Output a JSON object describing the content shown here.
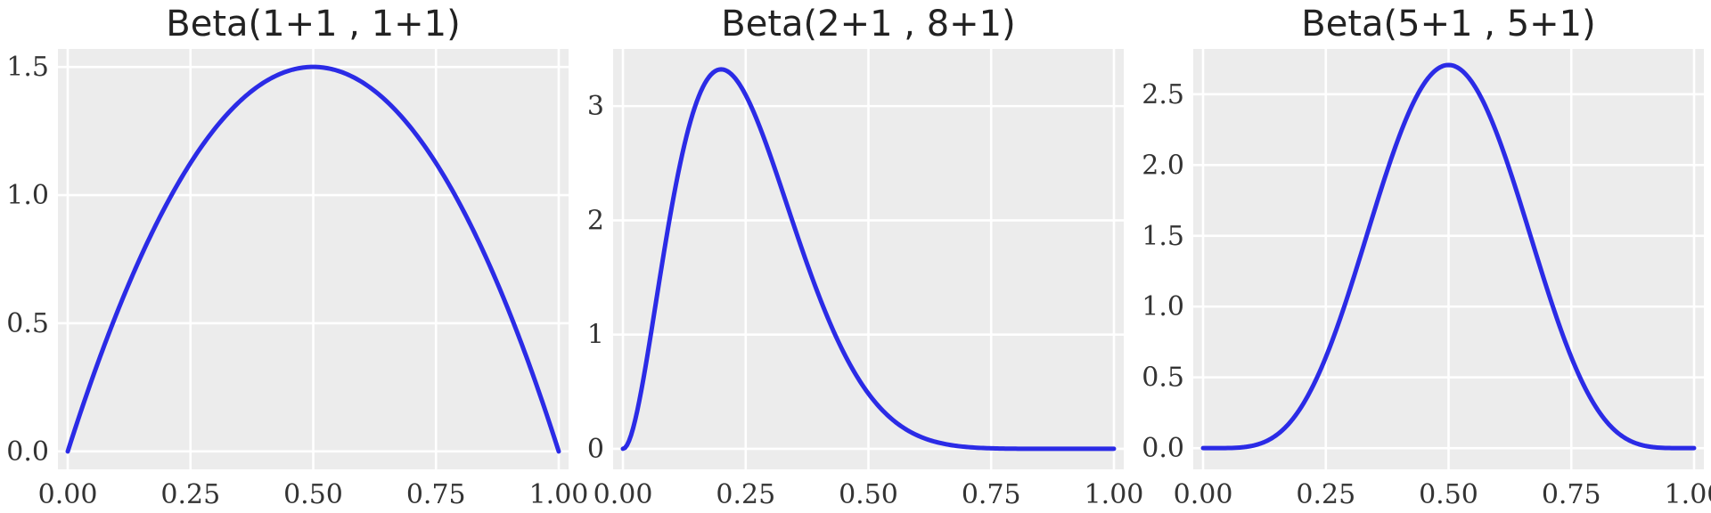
{
  "chart_data": [
    {
      "type": "line",
      "title": "Beta(1+1 , 1+1)",
      "alpha": 2,
      "beta": 2,
      "xlim": [
        -0.02,
        1.02
      ],
      "ylim": [
        -0.07,
        1.57
      ],
      "xticks": [
        0,
        0.25,
        0.5,
        0.75,
        1
      ],
      "xtick_labels": [
        "0.00",
        "0.25",
        "0.50",
        "0.75",
        "1.00"
      ],
      "yticks": [
        0,
        0.5,
        1,
        1.5
      ],
      "ytick_labels": [
        "0.0",
        "0.5",
        "1.0",
        "1.5"
      ],
      "grid": true,
      "series": [
        {
          "x": [
            0,
            0.1,
            0.2,
            0.3,
            0.4,
            0.5,
            0.6,
            0.7,
            0.8,
            0.9,
            1.0
          ],
          "y": [
            0,
            0.54,
            0.96,
            1.26,
            1.44,
            1.5,
            1.44,
            1.26,
            0.96,
            0.54,
            0
          ]
        }
      ]
    },
    {
      "type": "line",
      "title": "Beta(2+1 , 8+1)",
      "alpha": 3,
      "beta": 9,
      "xlim": [
        -0.02,
        1.02
      ],
      "ylim": [
        -0.18,
        3.5
      ],
      "xticks": [
        0,
        0.25,
        0.5,
        0.75,
        1
      ],
      "xtick_labels": [
        "0.00",
        "0.25",
        "0.50",
        "0.75",
        "1.00"
      ],
      "yticks": [
        0,
        1,
        2,
        3
      ],
      "ytick_labels": [
        "0",
        "1",
        "2",
        "3"
      ],
      "grid": true,
      "series": [
        {
          "x": [
            0,
            0.1,
            0.2,
            0.3,
            0.4,
            0.5,
            0.6,
            0.7,
            0.8,
            0.9,
            1.0
          ],
          "y": [
            0,
            2.13,
            3.32,
            2.54,
            1.15,
            0.33,
            0.06,
            0.005,
            0,
            0,
            0
          ]
        }
      ]
    },
    {
      "type": "line",
      "title": "Beta(5+1 , 5+1)",
      "alpha": 6,
      "beta": 6,
      "xlim": [
        -0.02,
        1.02
      ],
      "ylim": [
        -0.15,
        2.82
      ],
      "xticks": [
        0,
        0.25,
        0.5,
        0.75,
        1
      ],
      "xtick_labels": [
        "0.00",
        "0.25",
        "0.50",
        "0.75",
        "1.00"
      ],
      "yticks": [
        0,
        0.5,
        1,
        1.5,
        2,
        2.5
      ],
      "ytick_labels": [
        "0.0",
        "0.5",
        "1.0",
        "1.5",
        "2.0",
        "2.5"
      ],
      "grid": true,
      "series": [
        {
          "x": [
            0,
            0.1,
            0.2,
            0.3,
            0.4,
            0.5,
            0.6,
            0.7,
            0.8,
            0.9,
            1.0
          ],
          "y": [
            0,
            0.02,
            0.27,
            1.05,
            2.06,
            2.71,
            2.06,
            1.05,
            0.27,
            0.02,
            0
          ]
        }
      ]
    }
  ],
  "colors": {
    "line": "#2b2be6",
    "plot_background": "#ececec",
    "grid": "#ffffff"
  }
}
